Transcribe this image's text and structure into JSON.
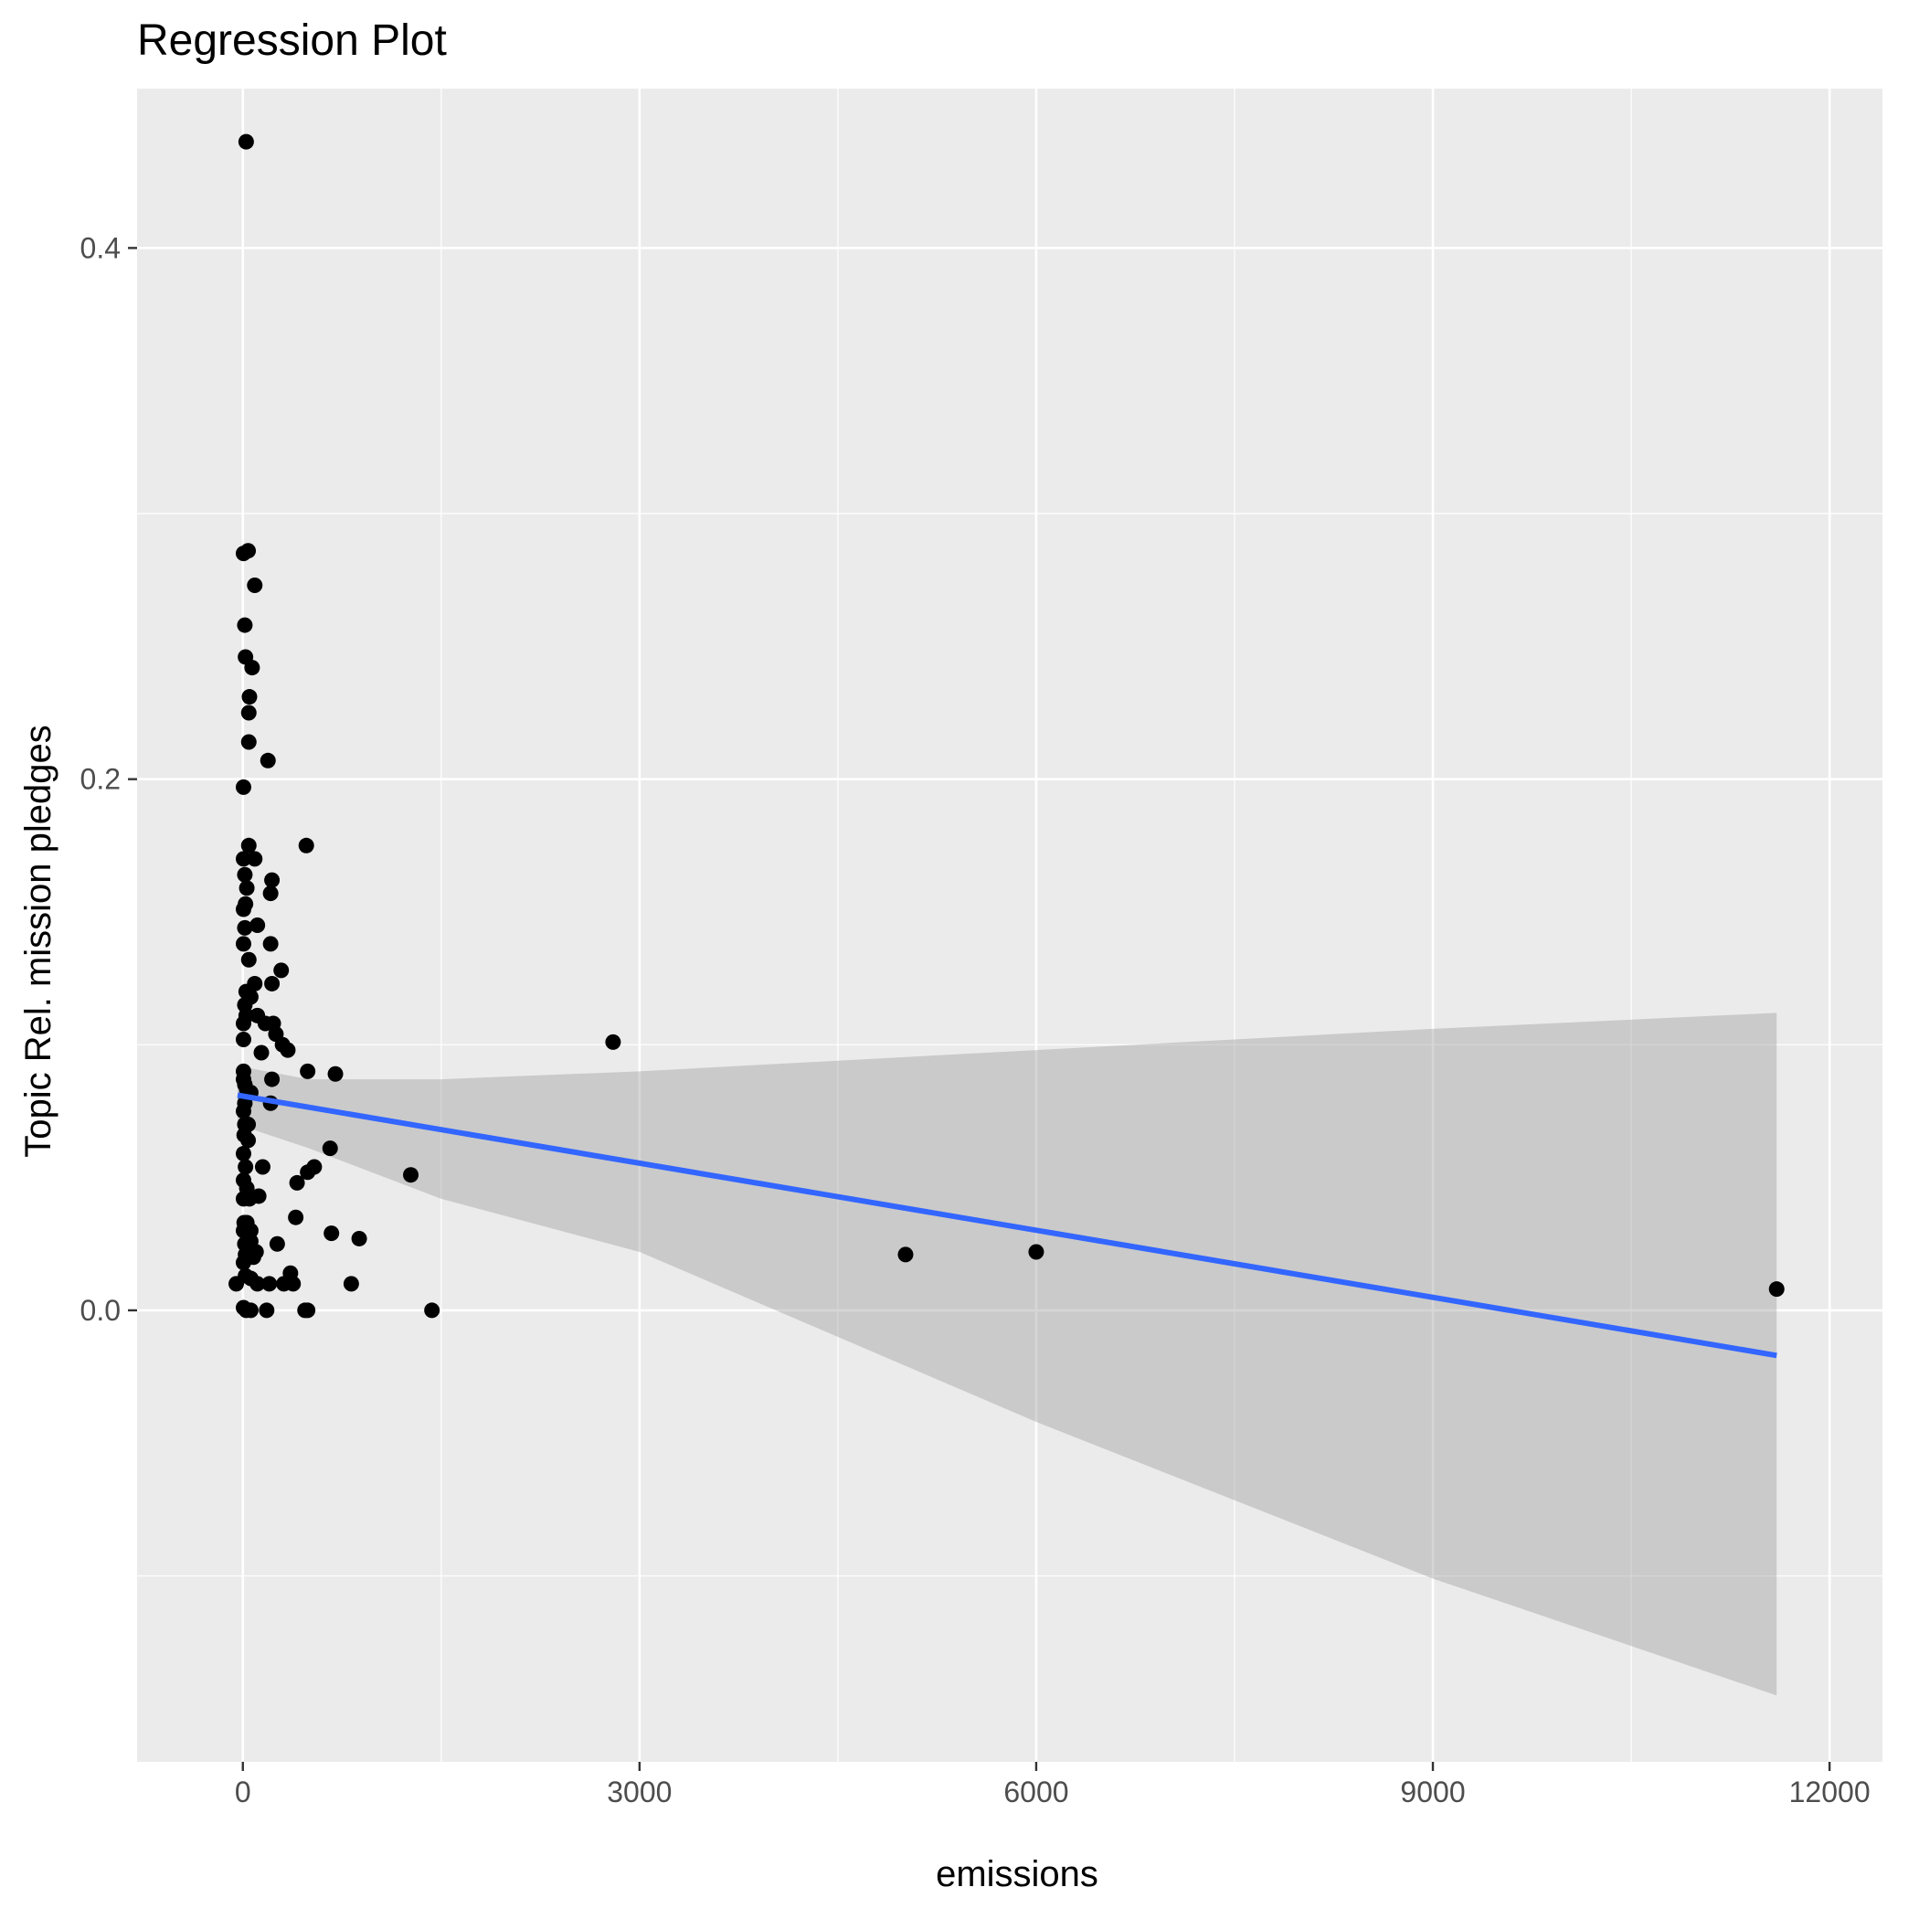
{
  "chart_data": {
    "type": "scatter",
    "title": "Regression Plot",
    "xlabel": "emissions",
    "ylabel": "Topic Rel. mission pledges",
    "xlim": [
      -800,
      12400
    ],
    "ylim": [
      -0.17,
      0.46
    ],
    "x_ticks": [
      0,
      3000,
      6000,
      9000,
      12000
    ],
    "x_tick_labels": [
      "0",
      "3000",
      "6000",
      "9000",
      "12000"
    ],
    "y_ticks": [
      0.0,
      0.2,
      0.4
    ],
    "y_tick_labels": [
      "0.0",
      "0.2",
      "0.4"
    ],
    "grid": true,
    "colors": {
      "panel": "#EBEBEB",
      "grid": "#FFFFFF",
      "points": "#000000",
      "fit_line": "#3366FF",
      "ribbon": "#999999"
    },
    "points": [
      {
        "x": 25,
        "y": 0.44
      },
      {
        "x": 5,
        "y": 0.285
      },
      {
        "x": 40,
        "y": 0.286
      },
      {
        "x": 90,
        "y": 0.273
      },
      {
        "x": 15,
        "y": 0.258
      },
      {
        "x": 20,
        "y": 0.246
      },
      {
        "x": 70,
        "y": 0.242
      },
      {
        "x": 50,
        "y": 0.231
      },
      {
        "x": 45,
        "y": 0.225
      },
      {
        "x": 45,
        "y": 0.214
      },
      {
        "x": 190,
        "y": 0.207
      },
      {
        "x": 5,
        "y": 0.197
      },
      {
        "x": 480,
        "y": 0.175
      },
      {
        "x": 45,
        "y": 0.175
      },
      {
        "x": 5,
        "y": 0.17
      },
      {
        "x": 90,
        "y": 0.17
      },
      {
        "x": 15,
        "y": 0.164
      },
      {
        "x": 220,
        "y": 0.162
      },
      {
        "x": 30,
        "y": 0.159
      },
      {
        "x": 210,
        "y": 0.157
      },
      {
        "x": 20,
        "y": 0.153
      },
      {
        "x": 5,
        "y": 0.151
      },
      {
        "x": 110,
        "y": 0.145
      },
      {
        "x": 15,
        "y": 0.144
      },
      {
        "x": 210,
        "y": 0.138
      },
      {
        "x": 5,
        "y": 0.138
      },
      {
        "x": 45,
        "y": 0.132
      },
      {
        "x": 290,
        "y": 0.128
      },
      {
        "x": 220,
        "y": 0.123
      },
      {
        "x": 90,
        "y": 0.123
      },
      {
        "x": 25,
        "y": 0.12
      },
      {
        "x": 60,
        "y": 0.118
      },
      {
        "x": 15,
        "y": 0.115
      },
      {
        "x": 110,
        "y": 0.111
      },
      {
        "x": 25,
        "y": 0.111
      },
      {
        "x": 5,
        "y": 0.108
      },
      {
        "x": 170,
        "y": 0.108
      },
      {
        "x": 230,
        "y": 0.108
      },
      {
        "x": 250,
        "y": 0.104
      },
      {
        "x": 5,
        "y": 0.102
      },
      {
        "x": 300,
        "y": 0.1
      },
      {
        "x": 340,
        "y": 0.098
      },
      {
        "x": 140,
        "y": 0.097
      },
      {
        "x": 2800,
        "y": 0.101
      },
      {
        "x": 5,
        "y": 0.09
      },
      {
        "x": 490,
        "y": 0.09
      },
      {
        "x": 700,
        "y": 0.089
      },
      {
        "x": 5,
        "y": 0.087
      },
      {
        "x": 220,
        "y": 0.087
      },
      {
        "x": 15,
        "y": 0.085
      },
      {
        "x": 30,
        "y": 0.083
      },
      {
        "x": 60,
        "y": 0.082
      },
      {
        "x": 15,
        "y": 0.078
      },
      {
        "x": 210,
        "y": 0.078
      },
      {
        "x": 5,
        "y": 0.075
      },
      {
        "x": 40,
        "y": 0.07
      },
      {
        "x": 15,
        "y": 0.07
      },
      {
        "x": 10,
        "y": 0.066
      },
      {
        "x": 40,
        "y": 0.064
      },
      {
        "x": 660,
        "y": 0.061
      },
      {
        "x": 5,
        "y": 0.059
      },
      {
        "x": 20,
        "y": 0.054
      },
      {
        "x": 150,
        "y": 0.054
      },
      {
        "x": 540,
        "y": 0.054
      },
      {
        "x": 490,
        "y": 0.052
      },
      {
        "x": 1270,
        "y": 0.051
      },
      {
        "x": 5,
        "y": 0.049
      },
      {
        "x": 410,
        "y": 0.048
      },
      {
        "x": 30,
        "y": 0.046
      },
      {
        "x": 120,
        "y": 0.043
      },
      {
        "x": 5,
        "y": 0.042
      },
      {
        "x": 50,
        "y": 0.042
      },
      {
        "x": 400,
        "y": 0.035
      },
      {
        "x": 10,
        "y": 0.033
      },
      {
        "x": 30,
        "y": 0.033
      },
      {
        "x": 5,
        "y": 0.03
      },
      {
        "x": 60,
        "y": 0.03
      },
      {
        "x": 670,
        "y": 0.029
      },
      {
        "x": 880,
        "y": 0.027
      },
      {
        "x": 15,
        "y": 0.025
      },
      {
        "x": 60,
        "y": 0.026
      },
      {
        "x": 260,
        "y": 0.025
      },
      {
        "x": 20,
        "y": 0.021
      },
      {
        "x": 100,
        "y": 0.022
      },
      {
        "x": 5,
        "y": 0.018
      },
      {
        "x": 80,
        "y": 0.02
      },
      {
        "x": 5012,
        "y": 0.021
      },
      {
        "x": 6000,
        "y": 0.022
      },
      {
        "x": -50,
        "y": 0.01
      },
      {
        "x": 20,
        "y": 0.013
      },
      {
        "x": 60,
        "y": 0.012
      },
      {
        "x": 110,
        "y": 0.01
      },
      {
        "x": 200,
        "y": 0.01
      },
      {
        "x": 310,
        "y": 0.01
      },
      {
        "x": 360,
        "y": 0.014
      },
      {
        "x": 380,
        "y": 0.01
      },
      {
        "x": 820,
        "y": 0.01
      },
      {
        "x": 5,
        "y": 0.001
      },
      {
        "x": 25,
        "y": 0.0
      },
      {
        "x": 60,
        "y": 0.0
      },
      {
        "x": 180,
        "y": 0.0
      },
      {
        "x": 470,
        "y": 0.0
      },
      {
        "x": 490,
        "y": 0.0
      },
      {
        "x": 1430,
        "y": 0.0
      },
      {
        "x": 11600,
        "y": 0.008
      }
    ],
    "regression": {
      "x": [
        -40,
        11600
      ],
      "y": [
        0.081,
        -0.017
      ]
    },
    "confidence_band": {
      "x": [
        -40,
        500,
        1500,
        3000,
        6000,
        9000,
        11600
      ],
      "upper": [
        0.092,
        0.087,
        0.087,
        0.09,
        0.098,
        0.106,
        0.112
      ],
      "lower": [
        0.07,
        0.061,
        0.042,
        0.022,
        -0.042,
        -0.101,
        -0.145
      ]
    }
  }
}
